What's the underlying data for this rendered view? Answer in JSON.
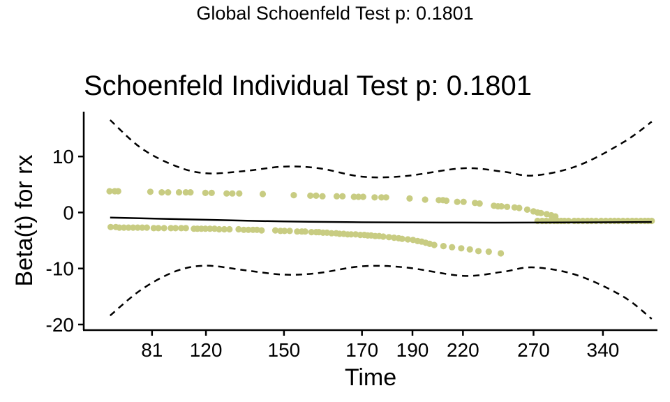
{
  "global_title": "Global Schoenfeld Test p: 0.1801",
  "chart_data": {
    "type": "scatter",
    "title": "Schoenfeld Individual Test p: 0.1801",
    "xlabel": "Time",
    "ylabel": "Beta(t) for rx",
    "x_ticks": [
      {
        "pos": 0.119,
        "label": "81"
      },
      {
        "pos": 0.213,
        "label": "120"
      },
      {
        "pos": 0.349,
        "label": "150"
      },
      {
        "pos": 0.485,
        "label": "170"
      },
      {
        "pos": 0.573,
        "label": "190"
      },
      {
        "pos": 0.661,
        "label": "220"
      },
      {
        "pos": 0.784,
        "label": "270"
      },
      {
        "pos": 0.905,
        "label": "340"
      }
    ],
    "y_ticks": [
      10,
      0,
      -10,
      -20
    ],
    "ylim": [
      -21,
      18
    ],
    "grid": false,
    "colors": {
      "points": "#c8cc82",
      "line": "#000000",
      "band": "#000000"
    },
    "points_upper": [
      [
        0.045,
        3.8
      ],
      [
        0.054,
        3.8
      ],
      [
        0.06,
        3.8
      ],
      [
        0.116,
        3.7
      ],
      [
        0.136,
        3.6
      ],
      [
        0.147,
        3.6
      ],
      [
        0.166,
        3.6
      ],
      [
        0.178,
        3.6
      ],
      [
        0.186,
        3.6
      ],
      [
        0.212,
        3.5
      ],
      [
        0.223,
        3.5
      ],
      [
        0.249,
        3.4
      ],
      [
        0.259,
        3.4
      ],
      [
        0.271,
        3.4
      ],
      [
        0.312,
        3.3
      ],
      [
        0.366,
        3.1
      ],
      [
        0.395,
        3.0
      ],
      [
        0.405,
        3.0
      ],
      [
        0.416,
        2.9
      ],
      [
        0.441,
        2.9
      ],
      [
        0.451,
        2.9
      ],
      [
        0.471,
        2.8
      ],
      [
        0.479,
        2.8
      ],
      [
        0.487,
        2.8
      ],
      [
        0.507,
        2.7
      ],
      [
        0.519,
        2.7
      ],
      [
        0.527,
        2.7
      ],
      [
        0.568,
        2.5
      ],
      [
        0.595,
        2.3
      ],
      [
        0.619,
        2.2
      ],
      [
        0.626,
        2.2
      ],
      [
        0.632,
        2.1
      ],
      [
        0.651,
        1.9
      ],
      [
        0.662,
        1.9
      ],
      [
        0.682,
        1.7
      ],
      [
        0.69,
        1.6
      ],
      [
        0.715,
        1.2
      ],
      [
        0.722,
        1.1
      ],
      [
        0.728,
        1.1
      ],
      [
        0.738,
        1.0
      ],
      [
        0.751,
        0.9
      ],
      [
        0.759,
        0.8
      ],
      [
        0.773,
        0.5
      ],
      [
        0.784,
        0.2
      ],
      [
        0.791,
        0.0
      ],
      [
        0.797,
        -0.1
      ],
      [
        0.807,
        -0.3
      ],
      [
        0.815,
        -0.5
      ],
      [
        0.822,
        -0.7
      ]
    ],
    "points_lower": [
      [
        0.047,
        -2.6
      ],
      [
        0.056,
        -2.6
      ],
      [
        0.062,
        -2.7
      ],
      [
        0.07,
        -2.7
      ],
      [
        0.078,
        -2.7
      ],
      [
        0.086,
        -2.7
      ],
      [
        0.094,
        -2.7
      ],
      [
        0.102,
        -2.7
      ],
      [
        0.11,
        -2.7
      ],
      [
        0.122,
        -2.8
      ],
      [
        0.13,
        -2.8
      ],
      [
        0.14,
        -2.8
      ],
      [
        0.152,
        -2.8
      ],
      [
        0.16,
        -2.8
      ],
      [
        0.17,
        -2.8
      ],
      [
        0.178,
        -2.8
      ],
      [
        0.192,
        -2.9
      ],
      [
        0.198,
        -2.9
      ],
      [
        0.205,
        -2.9
      ],
      [
        0.212,
        -2.9
      ],
      [
        0.22,
        -2.9
      ],
      [
        0.228,
        -2.9
      ],
      [
        0.236,
        -3.0
      ],
      [
        0.245,
        -3.0
      ],
      [
        0.254,
        -3.0
      ],
      [
        0.27,
        -3.0
      ],
      [
        0.279,
        -3.1
      ],
      [
        0.287,
        -3.1
      ],
      [
        0.295,
        -3.1
      ],
      [
        0.302,
        -3.1
      ],
      [
        0.31,
        -3.2
      ],
      [
        0.334,
        -3.2
      ],
      [
        0.343,
        -3.3
      ],
      [
        0.35,
        -3.3
      ],
      [
        0.359,
        -3.3
      ],
      [
        0.372,
        -3.4
      ],
      [
        0.38,
        -3.4
      ],
      [
        0.386,
        -3.4
      ],
      [
        0.397,
        -3.5
      ],
      [
        0.405,
        -3.5
      ],
      [
        0.41,
        -3.5
      ],
      [
        0.417,
        -3.6
      ],
      [
        0.424,
        -3.6
      ],
      [
        0.432,
        -3.7
      ],
      [
        0.44,
        -3.7
      ],
      [
        0.446,
        -3.8
      ],
      [
        0.453,
        -3.8
      ],
      [
        0.46,
        -3.9
      ],
      [
        0.466,
        -3.9
      ],
      [
        0.474,
        -3.9
      ],
      [
        0.482,
        -4.0
      ],
      [
        0.489,
        -4.0
      ],
      [
        0.495,
        -4.1
      ],
      [
        0.501,
        -4.1
      ],
      [
        0.508,
        -4.2
      ],
      [
        0.515,
        -4.2
      ],
      [
        0.522,
        -4.3
      ],
      [
        0.532,
        -4.4
      ],
      [
        0.541,
        -4.5
      ],
      [
        0.549,
        -4.6
      ],
      [
        0.555,
        -4.7
      ],
      [
        0.565,
        -4.8
      ],
      [
        0.574,
        -4.9
      ],
      [
        0.582,
        -5.1
      ],
      [
        0.589,
        -5.2
      ],
      [
        0.596,
        -5.4
      ],
      [
        0.603,
        -5.6
      ],
      [
        0.611,
        -5.8
      ],
      [
        0.627,
        -6.0
      ],
      [
        0.642,
        -6.2
      ],
      [
        0.658,
        -6.4
      ],
      [
        0.673,
        -6.6
      ],
      [
        0.688,
        -6.9
      ],
      [
        0.706,
        -7.0
      ],
      [
        0.727,
        -7.3
      ]
    ],
    "points_band": [
      [
        0.791,
        -1.5
      ],
      [
        0.799,
        -1.5
      ],
      [
        0.806,
        -1.5
      ],
      [
        0.813,
        -1.5
      ],
      [
        0.82,
        -1.5
      ],
      [
        0.826,
        -1.5
      ],
      [
        0.832,
        -1.5
      ],
      [
        0.838,
        -1.5
      ],
      [
        0.845,
        -1.5
      ],
      [
        0.855,
        -1.5
      ],
      [
        0.862,
        -1.5
      ],
      [
        0.87,
        -1.5
      ],
      [
        0.878,
        -1.5
      ],
      [
        0.885,
        -1.5
      ],
      [
        0.893,
        -1.5
      ],
      [
        0.902,
        -1.5
      ],
      [
        0.91,
        -1.5
      ],
      [
        0.918,
        -1.5
      ],
      [
        0.925,
        -1.5
      ],
      [
        0.932,
        -1.5
      ],
      [
        0.94,
        -1.5
      ],
      [
        0.948,
        -1.5
      ],
      [
        0.956,
        -1.5
      ],
      [
        0.963,
        -1.5
      ],
      [
        0.971,
        -1.5
      ],
      [
        0.978,
        -1.5
      ],
      [
        0.984,
        -1.5
      ],
      [
        0.99,
        -1.5
      ]
    ],
    "fit_line": [
      [
        0.046,
        -0.9
      ],
      [
        0.213,
        -1.3
      ],
      [
        0.349,
        -1.6
      ],
      [
        0.485,
        -1.75
      ],
      [
        0.661,
        -1.8
      ],
      [
        0.784,
        -1.8
      ],
      [
        0.99,
        -1.7
      ]
    ],
    "upper_band": [
      [
        0.046,
        16.5
      ],
      [
        0.1,
        11.5
      ],
      [
        0.16,
        8.3
      ],
      [
        0.213,
        7.0
      ],
      [
        0.28,
        7.4
      ],
      [
        0.349,
        8.2
      ],
      [
        0.41,
        7.9
      ],
      [
        0.485,
        6.4
      ],
      [
        0.56,
        6.5
      ],
      [
        0.661,
        7.9
      ],
      [
        0.73,
        7.3
      ],
      [
        0.784,
        6.6
      ],
      [
        0.86,
        8.3
      ],
      [
        0.94,
        12.5
      ],
      [
        0.99,
        16.2
      ]
    ],
    "lower_band": [
      [
        0.046,
        -18.4
      ],
      [
        0.1,
        -13.8
      ],
      [
        0.16,
        -10.5
      ],
      [
        0.213,
        -9.5
      ],
      [
        0.28,
        -10.3
      ],
      [
        0.349,
        -11.1
      ],
      [
        0.41,
        -10.8
      ],
      [
        0.485,
        -9.6
      ],
      [
        0.56,
        -9.8
      ],
      [
        0.661,
        -11.3
      ],
      [
        0.73,
        -10.6
      ],
      [
        0.784,
        -9.8
      ],
      [
        0.86,
        -11.2
      ],
      [
        0.94,
        -15.0
      ],
      [
        0.99,
        -19.0
      ]
    ]
  }
}
